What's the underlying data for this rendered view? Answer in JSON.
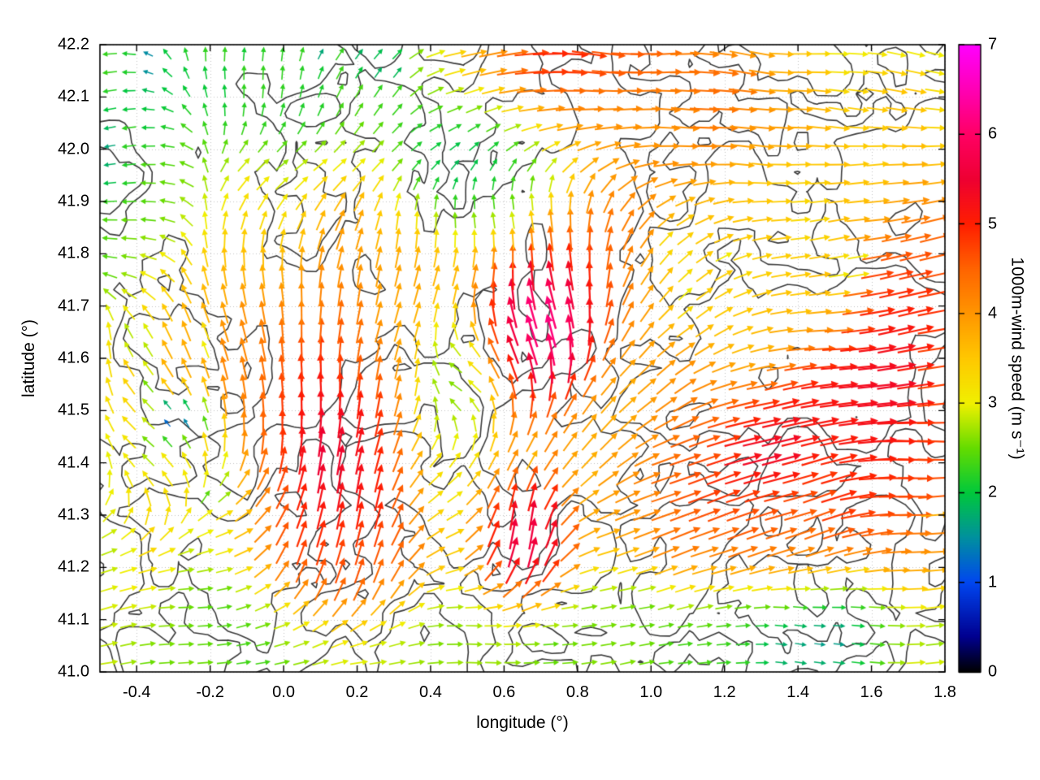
{
  "chart_data": {
    "type": "quiver",
    "title": "",
    "xlabel": "longitude (°)",
    "ylabel": "latitude (°)",
    "xlim": [
      -0.5,
      1.8
    ],
    "ylim": [
      41.0,
      42.2
    ],
    "xticks": [
      "-0.4",
      "-0.2",
      "0.0",
      "0.2",
      "0.4",
      "0.6",
      "0.8",
      "1.0",
      "1.2",
      "1.4",
      "1.6",
      "1.8"
    ],
    "xtick_values": [
      -0.4,
      -0.2,
      0.0,
      0.2,
      0.4,
      0.6,
      0.8,
      1.0,
      1.2,
      1.4,
      1.6,
      1.8
    ],
    "yticks": [
      "41.0",
      "41.1",
      "41.2",
      "41.3",
      "41.4",
      "41.5",
      "41.6",
      "41.7",
      "41.8",
      "41.9",
      "42.0",
      "42.1",
      "42.2"
    ],
    "ytick_values": [
      41.0,
      41.1,
      41.2,
      41.3,
      41.4,
      41.5,
      41.6,
      41.7,
      41.8,
      41.9,
      42.0,
      42.1,
      42.2
    ],
    "grid": "dotted",
    "grid_color": "#c4c4c4",
    "frame_color": "#000000",
    "colorbar": {
      "label": "1000m-wind speed (m s⁻¹)",
      "min": 0,
      "max": 7,
      "ticks": [
        "0",
        "1",
        "2",
        "3",
        "4",
        "5",
        "6",
        "7"
      ],
      "tick_values": [
        0,
        1,
        2,
        3,
        4,
        5,
        6,
        7
      ],
      "stops": [
        [
          0.0,
          "#000000"
        ],
        [
          0.4,
          "#000090"
        ],
        [
          1.0,
          "#0046f0"
        ],
        [
          1.5,
          "#00909f"
        ],
        [
          2.0,
          "#00c83c"
        ],
        [
          2.5,
          "#64dc00"
        ],
        [
          3.0,
          "#f0f000"
        ],
        [
          3.5,
          "#ffc800"
        ],
        [
          4.0,
          "#ff9600"
        ],
        [
          4.5,
          "#ff6400"
        ],
        [
          5.0,
          "#ff1e00"
        ],
        [
          5.5,
          "#ee0032"
        ],
        [
          6.0,
          "#ff0064"
        ],
        [
          6.5,
          "#ff00b4"
        ],
        [
          7.0,
          "#ff00ff"
        ]
      ]
    },
    "contours": {
      "color": "#3c3c3c",
      "levels": [
        0.47,
        0.585
      ],
      "seed": 5,
      "scale": 0.14,
      "grid": [
        86,
        64
      ]
    },
    "vector_grid": {
      "nx": 44,
      "ny": 34
    },
    "background_flow": {
      "dir": 5,
      "speed": 2.6,
      "w": 0.5
    },
    "noise": {
      "dir_jitter_deg": 26,
      "speed_jitter": 0.9
    },
    "flow_features": [
      {
        "lon": -0.45,
        "lat": 42.05,
        "rx": 0.22,
        "ry": 0.18,
        "dir": 185,
        "speed": 2.3,
        "w": 1.6
      },
      {
        "lon": -0.05,
        "lat": 42.13,
        "rx": 0.3,
        "ry": 0.1,
        "dir": 100,
        "speed": 1.3,
        "w": 1.4
      },
      {
        "lon": 0.25,
        "lat": 42.1,
        "rx": 0.15,
        "ry": 0.1,
        "dir": 75,
        "speed": 1.6,
        "w": 1.0
      },
      {
        "lon": 0.5,
        "lat": 42.0,
        "rx": 0.18,
        "ry": 0.1,
        "dir": 40,
        "speed": 0.9,
        "w": 1.3
      },
      {
        "lon": 0.95,
        "lat": 42.12,
        "rx": 0.5,
        "ry": 0.12,
        "dir": 3,
        "speed": 4.7,
        "w": 1.5,
        "lm": 1.3
      },
      {
        "lon": 0.8,
        "lat": 42.17,
        "rx": 0.22,
        "ry": 0.05,
        "dir": 8,
        "speed": 5.7,
        "w": 1.2,
        "lm": 1.4
      },
      {
        "lon": 1.55,
        "lat": 42.05,
        "rx": 0.3,
        "ry": 0.12,
        "dir": 355,
        "speed": 3.6,
        "w": 1.0
      },
      {
        "lon": 0.68,
        "lat": 41.66,
        "rx": 0.13,
        "ry": 0.11,
        "dir": 115,
        "speed": 7.0,
        "w": 2.6
      },
      {
        "lon": 0.78,
        "lat": 41.78,
        "rx": 0.25,
        "ry": 0.16,
        "dir": 95,
        "speed": 5.3,
        "w": 1.4
      },
      {
        "lon": 0.6,
        "lat": 41.52,
        "rx": 0.2,
        "ry": 0.14,
        "dir": 80,
        "speed": 4.6,
        "w": 1.2
      },
      {
        "lon": 0.66,
        "lat": 41.24,
        "rx": 0.11,
        "ry": 0.12,
        "dir": 95,
        "speed": 6.4,
        "w": 1.6
      },
      {
        "lon": 0.15,
        "lat": 41.4,
        "rx": 0.16,
        "ry": 0.22,
        "dir": 92,
        "speed": 6.1,
        "w": 2.0
      },
      {
        "lon": 0.17,
        "lat": 41.18,
        "rx": 0.18,
        "ry": 0.13,
        "dir": 85,
        "speed": 5.4,
        "w": 1.5
      },
      {
        "lon": 0.05,
        "lat": 41.55,
        "rx": 0.2,
        "ry": 0.15,
        "dir": 105,
        "speed": 5.0,
        "w": 1.2
      },
      {
        "lon": -0.05,
        "lat": 41.7,
        "rx": 0.28,
        "ry": 0.2,
        "dir": 125,
        "speed": 4.1,
        "w": 1.2
      },
      {
        "lon": 0.32,
        "lat": 41.78,
        "rx": 0.22,
        "ry": 0.18,
        "dir": 100,
        "speed": 3.9,
        "w": 1.0
      },
      {
        "lon": -0.35,
        "lat": 41.48,
        "rx": 0.18,
        "ry": 0.2,
        "dir": 155,
        "speed": 2.8,
        "w": 1.0
      },
      {
        "lon": -0.42,
        "lat": 41.85,
        "rx": 0.15,
        "ry": 0.15,
        "dir": 170,
        "speed": 2.4,
        "w": 1.0
      },
      {
        "lon": 1.45,
        "lat": 41.42,
        "rx": 0.38,
        "ry": 0.16,
        "dir": 15,
        "speed": 5.6,
        "w": 1.7,
        "lm": 1.45
      },
      {
        "lon": 1.25,
        "lat": 41.27,
        "rx": 0.3,
        "ry": 0.13,
        "dir": 22,
        "speed": 5.0,
        "w": 1.3,
        "lm": 1.3
      },
      {
        "lon": 1.68,
        "lat": 41.72,
        "rx": 0.14,
        "ry": 0.22,
        "dir": 8,
        "speed": 5.8,
        "w": 1.3,
        "lm": 1.4
      },
      {
        "lon": 1.45,
        "lat": 41.85,
        "rx": 0.25,
        "ry": 0.15,
        "dir": 2,
        "speed": 3.4,
        "w": 1.0
      },
      {
        "lon": 1.05,
        "lat": 41.6,
        "rx": 0.2,
        "ry": 0.15,
        "dir": 35,
        "speed": 3.3,
        "w": 1.0
      },
      {
        "lon": 0.5,
        "lat": 41.56,
        "rx": 0.12,
        "ry": 0.12,
        "dir": 210,
        "speed": 1.4,
        "w": 1.4
      },
      {
        "lon": 0.55,
        "lat": 41.9,
        "rx": 0.2,
        "ry": 0.1,
        "dir": 150,
        "speed": 1.0,
        "w": 1.2
      },
      {
        "lon": 0.85,
        "lat": 41.45,
        "rx": 0.12,
        "ry": 0.1,
        "dir": 60,
        "speed": 3.2,
        "w": 0.8
      },
      {
        "lon": 0.9,
        "lat": 41.08,
        "rx": 0.45,
        "ry": 0.09,
        "dir": 5,
        "speed": 2.4,
        "w": 1.4
      },
      {
        "lon": -0.15,
        "lat": 41.07,
        "rx": 0.4,
        "ry": 0.09,
        "dir": 10,
        "speed": 2.2,
        "w": 1.4
      },
      {
        "lon": 0.35,
        "lat": 41.05,
        "rx": 0.25,
        "ry": 0.07,
        "dir": 0,
        "speed": 3.0,
        "w": 1.0
      },
      {
        "lon": 1.5,
        "lat": 41.08,
        "rx": 0.28,
        "ry": 0.09,
        "dir": 350,
        "speed": 1.6,
        "w": 1.2
      },
      {
        "lon": 1.1,
        "lat": 41.78,
        "rx": 0.18,
        "ry": 0.12,
        "dir": 25,
        "speed": 3.0,
        "w": 0.9
      },
      {
        "lon": 1.75,
        "lat": 41.35,
        "rx": 0.12,
        "ry": 0.3,
        "dir": 12,
        "speed": 4.5,
        "w": 1.2,
        "lm": 1.3
      }
    ]
  }
}
